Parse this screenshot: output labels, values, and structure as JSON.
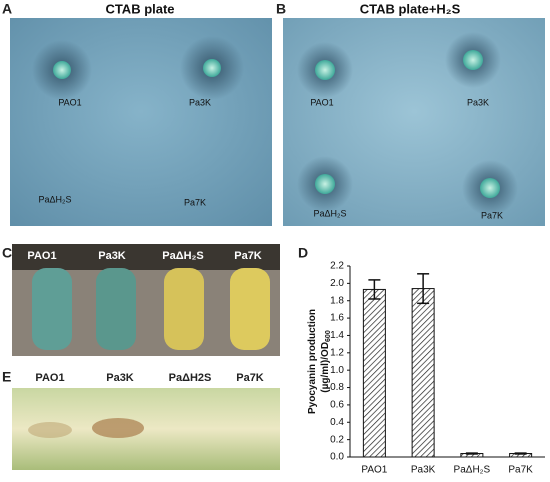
{
  "panels": {
    "A": {
      "letter": "A",
      "title": "CTAB plate",
      "labels": [
        "PAO1",
        "Pa3K",
        "PaΔH₂S",
        "Pa7K"
      ]
    },
    "B": {
      "letter": "B",
      "title": "CTAB plate+H₂S",
      "labels": [
        "PAO1",
        "Pa3K",
        "PaΔH₂S",
        "Pa7K"
      ]
    },
    "C": {
      "letter": "C",
      "labels": [
        "PAO1",
        "Pa3K",
        "PaΔH₂S",
        "Pa7K"
      ]
    },
    "E": {
      "letter": "E",
      "labels": [
        "PAO1",
        "Pa3K",
        "PaΔH2S",
        "Pa7K"
      ]
    }
  },
  "chart_data": {
    "letter": "D",
    "type": "bar",
    "categories": [
      "PAO1",
      "Pa3K",
      "PaΔH₂S",
      "Pa7K"
    ],
    "values": [
      1.93,
      1.94,
      0.04,
      0.04
    ],
    "errors": [
      0.11,
      0.17,
      0.005,
      0.005
    ],
    "ylabel": [
      "Pyocyanin production",
      "(µg/ml)/OD"
    ],
    "ylabel_subscript": "600",
    "ylim": [
      0,
      2.2
    ],
    "yticks": [
      {
        "value": 0,
        "label": "0.0"
      },
      0.2,
      0.4,
      0.6,
      0.8,
      {
        "value": 1,
        "label": "1.0"
      },
      1.2,
      1.4,
      1.6,
      1.8,
      {
        "value": 2,
        "label": "2.0"
      },
      2.2
    ]
  }
}
